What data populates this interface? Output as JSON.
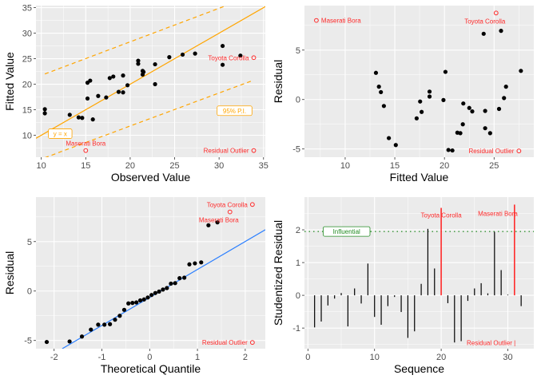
{
  "colors": {
    "panel_bg": "#EBEBEB",
    "grid": "#FFFFFF",
    "point": "#000000",
    "outlier": "#FF2A2A",
    "ref_line": "#FFA500",
    "qq_line": "#2B7FFF",
    "influential": "#228B22"
  },
  "chart_data": [
    {
      "type": "scatter",
      "xlabel": "Observed Value",
      "ylabel": "Fitted Value",
      "xlim": [
        9.4,
        35.2
      ],
      "ylim": [
        5.7,
        35.4
      ],
      "xticks": [
        10,
        15,
        20,
        25,
        30,
        35
      ],
      "yticks": [
        10,
        15,
        20,
        25,
        30,
        35
      ],
      "grid": true,
      "points": [
        [
          10.4,
          15.1
        ],
        [
          10.4,
          14.3
        ],
        [
          13.2,
          14.0
        ],
        [
          14.2,
          13.5
        ],
        [
          14.6,
          13.4
        ],
        [
          15.8,
          13.1
        ],
        [
          15.2,
          17.2
        ],
        [
          15.2,
          20.3
        ],
        [
          15.5,
          20.7
        ],
        [
          16.4,
          17.7
        ],
        [
          17.3,
          17.4
        ],
        [
          17.7,
          21.2
        ],
        [
          18.1,
          21.5
        ],
        [
          18.7,
          18.5
        ],
        [
          19.2,
          18.4
        ],
        [
          19.2,
          21.7
        ],
        [
          19.7,
          19.8
        ],
        [
          20.9,
          24.6
        ],
        [
          20.9,
          24.0
        ],
        [
          21.4,
          22.6
        ],
        [
          21.4,
          21.9
        ],
        [
          21.5,
          22.4
        ],
        [
          22.8,
          23.9
        ],
        [
          22.8,
          20.0
        ],
        [
          24.4,
          25.3
        ],
        [
          25.9,
          25.8
        ],
        [
          27.3,
          26.0
        ],
        [
          30.4,
          27.5
        ],
        [
          30.4,
          23.8
        ],
        [
          32.4,
          25.6
        ]
      ],
      "lines": [
        {
          "kind": "solid",
          "color": "ref",
          "from": [
            9.4,
            9.4
          ],
          "to": [
            35.2,
            35.2
          ]
        },
        {
          "kind": "dashed",
          "color": "ref",
          "from": [
            10.4,
            22.0
          ],
          "to": [
            30.5,
            35.2
          ]
        },
        {
          "kind": "dashed",
          "color": "ref",
          "from": [
            10.4,
            5.6
          ],
          "to": [
            33.9,
            20.8
          ]
        }
      ],
      "labels": [
        {
          "text": "y = x",
          "x": 10.8,
          "y": 10.3,
          "boxed": true,
          "color": "ref",
          "anchor": "start"
        },
        {
          "text": "95% P.I.",
          "x": 33.7,
          "y": 14.8,
          "boxed": true,
          "color": "ref",
          "anchor": "end"
        }
      ],
      "outliers": [
        {
          "text": "Toyota Corolla",
          "x": 33.9,
          "y": 25.2,
          "label_pos": "left"
        },
        {
          "text": "Maserati Bora",
          "x": 15.0,
          "y": 7.0,
          "label_pos": "above"
        },
        {
          "text": "Residual Outlier",
          "x": 33.9,
          "y": 7.0,
          "label_pos": "left"
        }
      ]
    },
    {
      "type": "scatter",
      "xlabel": "Fitted Value",
      "ylabel": "Residual",
      "xlim": [
        5.9,
        29.0
      ],
      "ylim": [
        -5.83,
        9.5
      ],
      "xticks": [
        10,
        15,
        20,
        25
      ],
      "yticks": [
        -5,
        0,
        5
      ],
      "grid": true,
      "points": [
        [
          13.1,
          2.7
        ],
        [
          13.4,
          1.3
        ],
        [
          13.6,
          0.75
        ],
        [
          13.9,
          -0.65
        ],
        [
          14.4,
          -3.9
        ],
        [
          15.1,
          -4.6
        ],
        [
          17.2,
          -1.9
        ],
        [
          17.55,
          -0.2
        ],
        [
          17.7,
          -1.25
        ],
        [
          18.5,
          0.8
        ],
        [
          18.5,
          0.3
        ],
        [
          19.9,
          -0.05
        ],
        [
          20.1,
          2.8
        ],
        [
          20.4,
          -5.1
        ],
        [
          20.8,
          -5.15
        ],
        [
          21.3,
          -3.35
        ],
        [
          21.6,
          -3.4
        ],
        [
          21.85,
          -2.5
        ],
        [
          21.9,
          -0.4
        ],
        [
          22.5,
          -0.85
        ],
        [
          22.8,
          -1.2
        ],
        [
          23.95,
          6.65
        ],
        [
          24.1,
          -2.9
        ],
        [
          24.1,
          -1.15
        ],
        [
          24.6,
          -3.4
        ],
        [
          25.5,
          -0.95
        ],
        [
          25.7,
          6.95
        ],
        [
          26.0,
          0.15
        ],
        [
          26.2,
          1.3
        ],
        [
          27.7,
          2.9
        ]
      ],
      "lines": [],
      "labels": [],
      "outliers": [
        {
          "text": "Maserati Bora",
          "x": 7.1,
          "y": 8.0,
          "label_pos": "right"
        },
        {
          "text": "Toyota Corolla",
          "x": 25.2,
          "y": 8.75,
          "label_pos": "below"
        },
        {
          "text": "Residual Outlier",
          "x": 27.5,
          "y": -5.2,
          "label_pos": "left"
        }
      ]
    },
    {
      "type": "scatter",
      "xlabel": "Theoretical Quantile",
      "ylabel": "Residual",
      "xlim": [
        -2.38,
        2.42
      ],
      "ylim": [
        -5.83,
        9.5
      ],
      "xticks": [
        -2,
        -1,
        0,
        1,
        2
      ],
      "yticks": [
        -5,
        0,
        5
      ],
      "grid": true,
      "points": [
        [
          -2.154,
          -5.15
        ],
        [
          -1.676,
          -5.1
        ],
        [
          -1.418,
          -4.6
        ],
        [
          -1.23,
          -3.9
        ],
        [
          -1.078,
          -3.4
        ],
        [
          -0.947,
          -3.4
        ],
        [
          -0.831,
          -3.35
        ],
        [
          -0.725,
          -2.9
        ],
        [
          -0.626,
          -2.5
        ],
        [
          -0.533,
          -1.9
        ],
        [
          -0.445,
          -1.25
        ],
        [
          -0.36,
          -1.2
        ],
        [
          -0.278,
          -1.15
        ],
        [
          -0.197,
          -0.95
        ],
        [
          -0.118,
          -0.85
        ],
        [
          -0.039,
          -0.65
        ],
        [
          0.039,
          -0.4
        ],
        [
          0.118,
          -0.2
        ],
        [
          0.197,
          -0.05
        ],
        [
          0.278,
          0.15
        ],
        [
          0.36,
          0.3
        ],
        [
          0.445,
          0.75
        ],
        [
          0.533,
          0.8
        ],
        [
          0.626,
          1.3
        ],
        [
          0.725,
          1.35
        ],
        [
          0.831,
          2.7
        ],
        [
          0.947,
          2.8
        ],
        [
          1.078,
          2.9
        ],
        [
          1.23,
          6.65
        ],
        [
          1.418,
          6.95
        ]
      ],
      "lines": [
        {
          "kind": "solid",
          "color": "qq",
          "from": [
            -1.83,
            -5.83
          ],
          "to": [
            2.42,
            6.2
          ]
        }
      ],
      "labels": [],
      "outliers": [
        {
          "text": "Toyota Corolla",
          "x": 2.15,
          "y": 8.75,
          "label_pos": "left"
        },
        {
          "text": "Maserati Bora",
          "x": 1.68,
          "y": 8.0,
          "label_pos": "below"
        },
        {
          "text": "Residual Outlier",
          "x": 2.15,
          "y": -5.2,
          "label_pos": "left"
        }
      ]
    },
    {
      "type": "bar",
      "xlabel": "Sequence",
      "ylabel": "Studentized Residual",
      "xlim": [
        -0.52,
        33.9
      ],
      "ylim": [
        -1.63,
        3.0
      ],
      "xticks": [
        0,
        10,
        20,
        30
      ],
      "yticks": [
        -1,
        0,
        1,
        2
      ],
      "grid": true,
      "x": [
        1,
        2,
        3,
        4,
        5,
        6,
        7,
        8,
        9,
        10,
        11,
        12,
        13,
        14,
        15,
        16,
        17,
        18,
        19,
        20,
        21,
        22,
        23,
        24,
        25,
        26,
        27,
        28,
        29,
        30,
        31,
        32
      ],
      "values": [
        -0.98,
        -0.8,
        -0.31,
        -0.1,
        0.07,
        -0.95,
        0.21,
        -0.25,
        0.97,
        -0.66,
        -0.9,
        -0.33,
        -0.05,
        -0.51,
        -1.3,
        -1.1,
        0.35,
        2.03,
        0.82,
        2.67,
        -0.24,
        -1.44,
        -1.4,
        -0.17,
        0.21,
        0.37,
        0.06,
        1.94,
        0.77,
        0.02,
        2.77,
        -0.33
      ],
      "highlighted": [
        20,
        31
      ],
      "threshold": {
        "y": 1.95,
        "label": "Influential",
        "label_x": 5.8
      },
      "outliers": [
        {
          "text": "Toyota Corolla",
          "x": 20,
          "y": 2.45,
          "label_pos": "center"
        },
        {
          "text": "Maserati Bora",
          "x": 28.5,
          "y": 2.5,
          "label_pos": "center"
        },
        {
          "text": "Residual Outlier |",
          "x": 27.5,
          "y": -1.45,
          "label_pos": "center"
        }
      ]
    }
  ]
}
